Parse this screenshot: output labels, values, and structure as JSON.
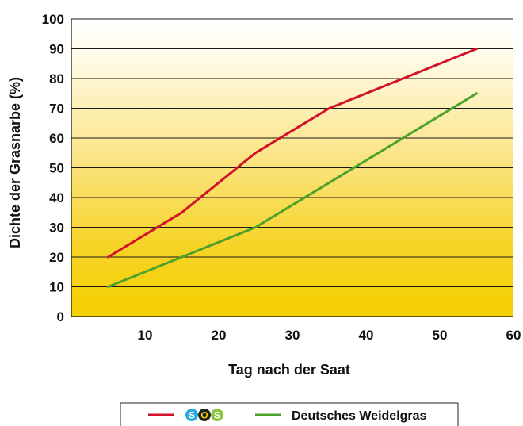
{
  "chart_data": {
    "type": "line",
    "xlabel": "Tag nach der Saat",
    "ylabel": "Dichte der Grasnarbe (%)",
    "xlim": [
      0,
      60
    ],
    "ylim": [
      0,
      100
    ],
    "xticks": [
      10,
      20,
      30,
      40,
      50,
      60
    ],
    "yticks": [
      0,
      10,
      20,
      30,
      40,
      50,
      60,
      70,
      80,
      90,
      100
    ],
    "grid": "horizontal",
    "background": "gradient white to yellow",
    "legend_position": "bottom-center",
    "series": [
      {
        "name": "SOS",
        "color": "#d0122a",
        "legend_icon": "sos-logo-icon",
        "logo_letters": [
          "S",
          "O",
          "S"
        ],
        "x": [
          5,
          15,
          25,
          35,
          45,
          55
        ],
        "y": [
          20,
          35,
          55,
          70,
          80,
          90
        ]
      },
      {
        "name": "Deutsches Weidelgras",
        "color": "#4ea12a",
        "x": [
          5,
          15,
          25,
          35,
          45,
          55
        ],
        "y": [
          10,
          20,
          30,
          45,
          60,
          75
        ]
      }
    ]
  }
}
